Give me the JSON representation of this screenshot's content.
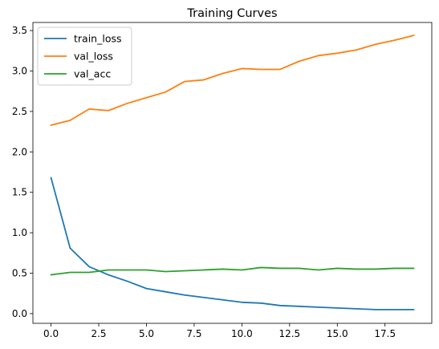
{
  "chart_data": {
    "type": "line",
    "title": "Training Curves",
    "xlabel": "",
    "ylabel": "",
    "xlim": [
      -0.95,
      19.95
    ],
    "ylim": [
      -0.12,
      3.6
    ],
    "xticks": [
      0.0,
      2.5,
      5.0,
      7.5,
      10.0,
      12.5,
      15.0,
      17.5
    ],
    "xtick_labels": [
      "0.0",
      "2.5",
      "5.0",
      "7.5",
      "10.0",
      "12.5",
      "15.0",
      "17.5"
    ],
    "yticks": [
      0.0,
      0.5,
      1.0,
      1.5,
      2.0,
      2.5,
      3.0,
      3.5
    ],
    "ytick_labels": [
      "0.0",
      "0.5",
      "1.0",
      "1.5",
      "2.0",
      "2.5",
      "3.0",
      "3.5"
    ],
    "grid": false,
    "legend_position": "top-left",
    "x": [
      0,
      1,
      2,
      3,
      4,
      5,
      6,
      7,
      8,
      9,
      10,
      11,
      12,
      13,
      14,
      15,
      16,
      17,
      18,
      19
    ],
    "series": [
      {
        "name": "train_loss",
        "color": "#1f77b4",
        "values": [
          1.68,
          0.81,
          0.58,
          0.48,
          0.4,
          0.31,
          0.27,
          0.23,
          0.2,
          0.17,
          0.14,
          0.13,
          0.1,
          0.09,
          0.08,
          0.07,
          0.06,
          0.05,
          0.05,
          0.05
        ]
      },
      {
        "name": "val_loss",
        "color": "#ff7f0e",
        "values": [
          2.33,
          2.39,
          2.53,
          2.51,
          2.6,
          2.67,
          2.74,
          2.87,
          2.89,
          2.97,
          3.03,
          3.02,
          3.02,
          3.12,
          3.19,
          3.22,
          3.26,
          3.33,
          3.38,
          3.44
        ]
      },
      {
        "name": "val_acc",
        "color": "#2ca02c",
        "values": [
          0.48,
          0.51,
          0.51,
          0.54,
          0.54,
          0.54,
          0.52,
          0.53,
          0.54,
          0.55,
          0.54,
          0.57,
          0.56,
          0.56,
          0.54,
          0.56,
          0.55,
          0.55,
          0.56,
          0.56
        ]
      }
    ]
  }
}
